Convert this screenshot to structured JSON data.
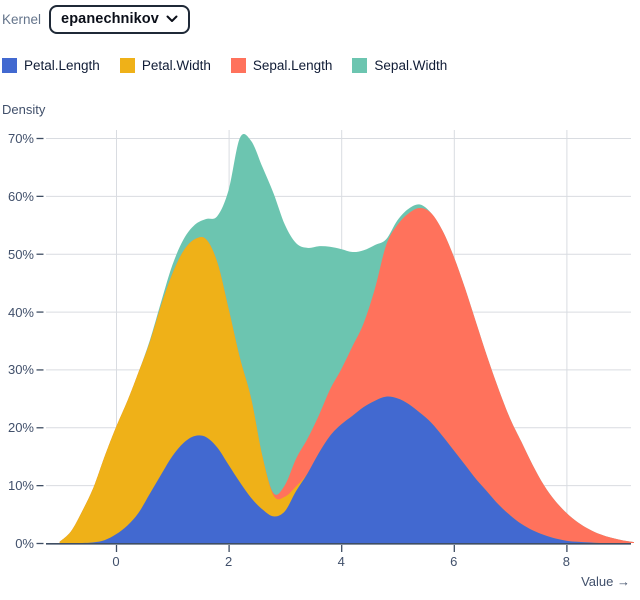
{
  "controls": {
    "kernel_label": "Kernel",
    "kernel_value": "epanechnikov"
  },
  "legend": {
    "items": [
      {
        "label": "Petal.Length",
        "color": "#4269d0"
      },
      {
        "label": "Petal.Width",
        "color": "#efb118"
      },
      {
        "label": "Sepal.Length",
        "color": "#ff725c"
      },
      {
        "label": "Sepal.Width",
        "color": "#6cc5b0"
      }
    ]
  },
  "chart_data": {
    "type": "area",
    "stacked": true,
    "title": "",
    "xlabel": "Value →",
    "ylabel": "Density",
    "xlim": [
      -1.05,
      9.2
    ],
    "ylim": [
      0,
      72
    ],
    "grid": true,
    "legend_position": "top",
    "x_ticks": {
      "values": [
        0,
        2,
        4,
        6,
        8
      ],
      "labels": [
        "0",
        "2",
        "4",
        "6",
        "8"
      ]
    },
    "y_ticks": {
      "values": [
        0,
        10,
        20,
        30,
        40,
        50,
        60,
        70
      ],
      "labels": [
        "0%",
        "10%",
        "20%",
        "30%",
        "40%",
        "50%",
        "60%",
        "70%"
      ]
    },
    "x": [
      -1.0,
      -0.8,
      -0.6,
      -0.4,
      -0.2,
      0.0,
      0.2,
      0.4,
      0.6,
      0.8,
      1.0,
      1.2,
      1.4,
      1.6,
      1.8,
      2.0,
      2.2,
      2.4,
      2.6,
      2.8,
      3.0,
      3.2,
      3.4,
      3.6,
      3.8,
      4.0,
      4.2,
      4.4,
      4.6,
      4.8,
      5.0,
      5.2,
      5.4,
      5.6,
      5.8,
      6.0,
      6.2,
      6.4,
      6.6,
      6.8,
      7.0,
      7.2,
      7.4,
      7.6,
      7.8,
      8.0,
      8.2,
      8.4,
      8.6,
      8.8,
      9.0,
      9.2
    ],
    "series": [
      {
        "name": "Petal.Length",
        "color": "#4269d0",
        "values": [
          0,
          0,
          0,
          0.1,
          0.5,
          1.5,
          3,
          5.2,
          8.5,
          11.8,
          15,
          17.3,
          18.5,
          18.3,
          16.5,
          13.5,
          10.5,
          7.8,
          5.8,
          4.6,
          5.5,
          9,
          12,
          15.5,
          18.5,
          20.5,
          22,
          23.5,
          24.6,
          25.3,
          25,
          24,
          22.5,
          20.8,
          18.5,
          16,
          13.5,
          11,
          8.8,
          6.6,
          4.8,
          3.3,
          2.2,
          1.4,
          0.8,
          0.4,
          0.2,
          0.1,
          0,
          0,
          0,
          0
        ]
      },
      {
        "name": "Petal.Width",
        "color": "#efb118",
        "values": [
          0.2,
          2,
          5.5,
          9.5,
          14.5,
          18.5,
          21.5,
          24.3,
          26.2,
          29.2,
          31.5,
          33.2,
          34,
          34.2,
          32,
          27,
          21.5,
          17.2,
          9.2,
          3.6,
          2.5,
          0.8,
          0,
          0,
          0,
          0,
          0,
          0,
          0,
          0,
          0,
          0,
          0,
          0,
          0,
          0,
          0,
          0,
          0,
          0,
          0,
          0,
          0,
          0,
          0,
          0,
          0,
          0,
          0,
          0,
          0,
          0
        ]
      },
      {
        "name": "Sepal.Length",
        "color": "#ff725c",
        "values": [
          0,
          0,
          0,
          0,
          0,
          0,
          0,
          0,
          0,
          0,
          0,
          0,
          0,
          0,
          0,
          0,
          0,
          0,
          0,
          0.4,
          2,
          4.8,
          6,
          6.5,
          8,
          9.5,
          12,
          14.5,
          19.4,
          26.2,
          30,
          33,
          35.4,
          36.2,
          35.5,
          33.5,
          30.5,
          27,
          23.2,
          19.9,
          16.7,
          14.2,
          11.3,
          8.6,
          6.5,
          4.8,
          3.4,
          2.3,
          1.5,
          0.9,
          0.45,
          0.15
        ]
      },
      {
        "name": "Sepal.Width",
        "color": "#6cc5b0",
        "values": [
          0,
          0,
          0,
          0,
          0,
          0,
          0,
          0,
          0.3,
          0.6,
          1.5,
          2,
          2.5,
          3.5,
          8,
          20.5,
          38,
          44.5,
          50,
          51.8,
          45,
          37.2,
          33,
          29.3,
          24.7,
          20.8,
          16.3,
          12.6,
          7.5,
          1,
          0.8,
          0.8,
          0.6,
          0,
          0,
          0,
          0,
          0,
          0,
          0,
          0,
          0,
          0,
          0,
          0,
          0,
          0,
          0,
          0,
          0,
          0,
          0
        ]
      }
    ]
  },
  "theme": {
    "grid_color": "#d9dce1",
    "axis_color": "#3f4e63",
    "tick_text_color": "#41506b"
  }
}
